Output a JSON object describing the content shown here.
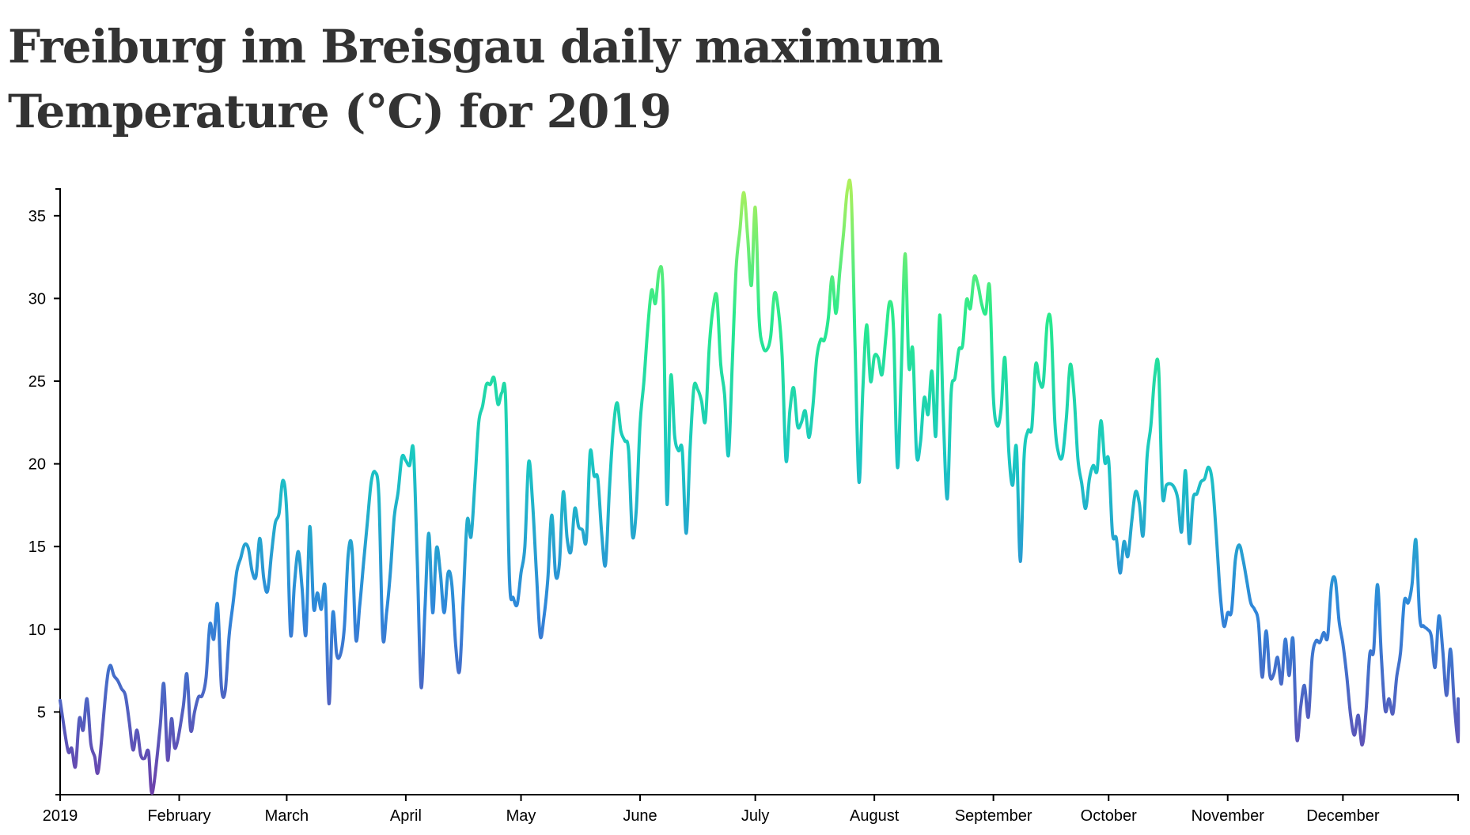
{
  "chart_data": {
    "type": "line",
    "title": "Freiburg im Breisgau daily maximum Temperature (°C) for 2019",
    "xlabel": "",
    "ylabel": "",
    "grid": false,
    "legend": "none",
    "year": 2019,
    "ylim": [
      0,
      37
    ],
    "y_ticks": [
      5,
      10,
      15,
      20,
      25,
      30,
      35
    ],
    "x_tick_labels": [
      "2019",
      "February",
      "March",
      "April",
      "May",
      "June",
      "July",
      "August",
      "September",
      "October",
      "November",
      "December"
    ],
    "x_tick_dates": [
      "2019-01-01",
      "2019-02-01",
      "2019-03-01",
      "2019-04-01",
      "2019-05-01",
      "2019-06-01",
      "2019-07-01",
      "2019-08-01",
      "2019-09-01",
      "2019-10-01",
      "2019-11-01",
      "2019-12-01",
      "2019-12-31"
    ],
    "color_scale": {
      "low": "#6e40aa",
      "mid_low": "#2f86da",
      "mid": "#1ac7c2",
      "mid_high": "#28ea8d",
      "high": "#aff05b"
    },
    "line_color_ref": {
      "low_temp": 0,
      "high_temp": 37
    },
    "points": [
      [
        "2019-01-01",
        5.7
      ],
      [
        "2019-01-03",
        2.7
      ],
      [
        "2019-01-04",
        2.8
      ],
      [
        "2019-01-05",
        1.7
      ],
      [
        "2019-01-06",
        4.6
      ],
      [
        "2019-01-07",
        3.9
      ],
      [
        "2019-01-08",
        5.8
      ],
      [
        "2019-01-09",
        3.1
      ],
      [
        "2019-01-10",
        2.3
      ],
      [
        "2019-01-11",
        1.5
      ],
      [
        "2019-01-13",
        6.5
      ],
      [
        "2019-01-14",
        7.8
      ],
      [
        "2019-01-15",
        7.2
      ],
      [
        "2019-01-16",
        6.9
      ],
      [
        "2019-01-17",
        6.4
      ],
      [
        "2019-01-18",
        6.0
      ],
      [
        "2019-01-19",
        4.4
      ],
      [
        "2019-01-20",
        2.7
      ],
      [
        "2019-01-21",
        3.9
      ],
      [
        "2019-01-22",
        2.4
      ],
      [
        "2019-01-23",
        2.2
      ],
      [
        "2019-01-24",
        2.6
      ],
      [
        "2019-01-25",
        0.1
      ],
      [
        "2019-01-27",
        4.0
      ],
      [
        "2019-01-28",
        6.7
      ],
      [
        "2019-01-29",
        2.1
      ],
      [
        "2019-01-30",
        4.6
      ],
      [
        "2019-01-31",
        2.8
      ],
      [
        "2019-02-02",
        5.2
      ],
      [
        "2019-02-03",
        7.3
      ],
      [
        "2019-02-04",
        3.9
      ],
      [
        "2019-02-05",
        5.0
      ],
      [
        "2019-02-06",
        5.9
      ],
      [
        "2019-02-07",
        6.0
      ],
      [
        "2019-02-08",
        7.1
      ],
      [
        "2019-02-09",
        10.3
      ],
      [
        "2019-02-10",
        9.4
      ],
      [
        "2019-02-11",
        11.5
      ],
      [
        "2019-02-12",
        6.5
      ],
      [
        "2019-02-13",
        6.3
      ],
      [
        "2019-02-14",
        9.6
      ],
      [
        "2019-02-15",
        11.5
      ],
      [
        "2019-02-16",
        13.5
      ],
      [
        "2019-02-17",
        14.3
      ],
      [
        "2019-02-18",
        15.1
      ],
      [
        "2019-02-19",
        14.9
      ],
      [
        "2019-02-20",
        13.5
      ],
      [
        "2019-02-21",
        13.2
      ],
      [
        "2019-02-22",
        15.5
      ],
      [
        "2019-02-23",
        13.1
      ],
      [
        "2019-02-24",
        12.3
      ],
      [
        "2019-02-25",
        14.5
      ],
      [
        "2019-02-26",
        16.4
      ],
      [
        "2019-02-27",
        17.0
      ],
      [
        "2019-02-28",
        19.0
      ],
      [
        "2019-03-01",
        17.1
      ],
      [
        "2019-03-02",
        9.7
      ],
      [
        "2019-03-03",
        12.7
      ],
      [
        "2019-03-04",
        14.7
      ],
      [
        "2019-03-05",
        12.5
      ],
      [
        "2019-03-06",
        9.7
      ],
      [
        "2019-03-07",
        16.2
      ],
      [
        "2019-03-08",
        11.3
      ],
      [
        "2019-03-09",
        12.2
      ],
      [
        "2019-03-10",
        11.2
      ],
      [
        "2019-03-11",
        12.5
      ],
      [
        "2019-03-12",
        5.5
      ],
      [
        "2019-03-13",
        11.0
      ],
      [
        "2019-03-14",
        8.5
      ],
      [
        "2019-03-15",
        8.5
      ],
      [
        "2019-03-16",
        10.1
      ],
      [
        "2019-03-17",
        14.5
      ],
      [
        "2019-03-18",
        14.9
      ],
      [
        "2019-03-19",
        9.4
      ],
      [
        "2019-03-20",
        11.4
      ],
      [
        "2019-03-21",
        14.0
      ],
      [
        "2019-03-22",
        16.5
      ],
      [
        "2019-03-23",
        18.9
      ],
      [
        "2019-03-24",
        19.5
      ],
      [
        "2019-03-25",
        18.0
      ],
      [
        "2019-03-26",
        9.6
      ],
      [
        "2019-03-27",
        11.0
      ],
      [
        "2019-03-28",
        13.5
      ],
      [
        "2019-03-29",
        16.8
      ],
      [
        "2019-03-30",
        18.3
      ],
      [
        "2019-03-31",
        20.4
      ],
      [
        "2019-04-01",
        20.2
      ],
      [
        "2019-04-02",
        19.9
      ],
      [
        "2019-04-03",
        20.8
      ],
      [
        "2019-04-04",
        14.0
      ],
      [
        "2019-04-05",
        6.5
      ],
      [
        "2019-04-06",
        11.3
      ],
      [
        "2019-04-07",
        15.8
      ],
      [
        "2019-04-08",
        11.0
      ],
      [
        "2019-04-09",
        14.9
      ],
      [
        "2019-04-10",
        13.4
      ],
      [
        "2019-04-11",
        11.0
      ],
      [
        "2019-04-12",
        13.4
      ],
      [
        "2019-04-13",
        12.7
      ],
      [
        "2019-04-14",
        9.0
      ],
      [
        "2019-04-15",
        7.5
      ],
      [
        "2019-04-16",
        12.0
      ],
      [
        "2019-04-17",
        16.6
      ],
      [
        "2019-04-18",
        15.6
      ],
      [
        "2019-04-19",
        18.9
      ],
      [
        "2019-04-20",
        22.5
      ],
      [
        "2019-04-21",
        23.5
      ],
      [
        "2019-04-22",
        24.8
      ],
      [
        "2019-04-23",
        24.8
      ],
      [
        "2019-04-24",
        25.2
      ],
      [
        "2019-04-25",
        23.6
      ],
      [
        "2019-04-26",
        24.3
      ],
      [
        "2019-04-27",
        23.9
      ],
      [
        "2019-04-28",
        13.0
      ],
      [
        "2019-04-29",
        11.9
      ],
      [
        "2019-04-30",
        11.5
      ],
      [
        "2019-05-01",
        13.4
      ],
      [
        "2019-05-02",
        15.0
      ],
      [
        "2019-05-03",
        20.1
      ],
      [
        "2019-05-04",
        17.7
      ],
      [
        "2019-05-05",
        13.5
      ],
      [
        "2019-05-06",
        9.6
      ],
      [
        "2019-05-07",
        10.8
      ],
      [
        "2019-05-08",
        13.1
      ],
      [
        "2019-05-09",
        16.9
      ],
      [
        "2019-05-10",
        13.3
      ],
      [
        "2019-05-11",
        14.0
      ],
      [
        "2019-05-12",
        18.3
      ],
      [
        "2019-05-13",
        15.5
      ],
      [
        "2019-05-14",
        14.7
      ],
      [
        "2019-05-15",
        17.3
      ],
      [
        "2019-05-16",
        16.2
      ],
      [
        "2019-05-17",
        16.0
      ],
      [
        "2019-05-18",
        15.4
      ],
      [
        "2019-05-19",
        20.7
      ],
      [
        "2019-05-20",
        19.3
      ],
      [
        "2019-05-21",
        19.1
      ],
      [
        "2019-05-22",
        15.8
      ],
      [
        "2019-05-23",
        13.9
      ],
      [
        "2019-05-24",
        18.4
      ],
      [
        "2019-05-25",
        22.0
      ],
      [
        "2019-05-26",
        23.7
      ],
      [
        "2019-05-27",
        22.0
      ],
      [
        "2019-05-28",
        21.4
      ],
      [
        "2019-05-29",
        20.8
      ],
      [
        "2019-05-30",
        15.7
      ],
      [
        "2019-05-31",
        17.2
      ],
      [
        "2019-06-01",
        22.4
      ],
      [
        "2019-06-02",
        25.0
      ],
      [
        "2019-06-03",
        28.2
      ],
      [
        "2019-06-04",
        30.5
      ],
      [
        "2019-06-05",
        29.7
      ],
      [
        "2019-06-06",
        31.7
      ],
      [
        "2019-06-07",
        30.3
      ],
      [
        "2019-06-08",
        17.6
      ],
      [
        "2019-06-09",
        25.3
      ],
      [
        "2019-06-10",
        21.7
      ],
      [
        "2019-06-11",
        20.8
      ],
      [
        "2019-06-12",
        20.8
      ],
      [
        "2019-06-13",
        15.8
      ],
      [
        "2019-06-14",
        20.8
      ],
      [
        "2019-06-15",
        24.6
      ],
      [
        "2019-06-16",
        24.5
      ],
      [
        "2019-06-17",
        23.8
      ],
      [
        "2019-06-18",
        22.6
      ],
      [
        "2019-06-19",
        27.0
      ],
      [
        "2019-06-20",
        29.4
      ],
      [
        "2019-06-21",
        30.1
      ],
      [
        "2019-06-22",
        26.0
      ],
      [
        "2019-06-23",
        24.2
      ],
      [
        "2019-06-24",
        20.5
      ],
      [
        "2019-06-25",
        26.0
      ],
      [
        "2019-06-26",
        31.8
      ],
      [
        "2019-06-27",
        34.1
      ],
      [
        "2019-06-28",
        36.4
      ],
      [
        "2019-06-29",
        33.8
      ],
      [
        "2019-06-30",
        30.8
      ],
      [
        "2019-07-01",
        35.5
      ],
      [
        "2019-07-02",
        28.8
      ],
      [
        "2019-07-03",
        27.1
      ],
      [
        "2019-07-04",
        26.9
      ],
      [
        "2019-07-05",
        27.7
      ],
      [
        "2019-07-06",
        30.3
      ],
      [
        "2019-07-07",
        29.3
      ],
      [
        "2019-07-08",
        26.5
      ],
      [
        "2019-07-09",
        20.2
      ],
      [
        "2019-07-10",
        23.2
      ],
      [
        "2019-07-11",
        24.6
      ],
      [
        "2019-07-12",
        22.3
      ],
      [
        "2019-07-13",
        22.5
      ],
      [
        "2019-07-14",
        23.2
      ],
      [
        "2019-07-15",
        21.6
      ],
      [
        "2019-07-16",
        23.5
      ],
      [
        "2019-07-17",
        26.4
      ],
      [
        "2019-07-18",
        27.5
      ],
      [
        "2019-07-19",
        27.5
      ],
      [
        "2019-07-20",
        28.8
      ],
      [
        "2019-07-21",
        31.3
      ],
      [
        "2019-07-22",
        29.1
      ],
      [
        "2019-07-23",
        31.6
      ],
      [
        "2019-07-24",
        34.0
      ],
      [
        "2019-07-25",
        36.6
      ],
      [
        "2019-07-26",
        36.2
      ],
      [
        "2019-07-27",
        26.9
      ],
      [
        "2019-07-28",
        18.9
      ],
      [
        "2019-07-29",
        24.5
      ],
      [
        "2019-07-30",
        28.4
      ],
      [
        "2019-07-31",
        25.0
      ],
      [
        "2019-08-01",
        26.5
      ],
      [
        "2019-08-02",
        26.4
      ],
      [
        "2019-08-03",
        25.4
      ],
      [
        "2019-08-04",
        27.7
      ],
      [
        "2019-08-05",
        29.8
      ],
      [
        "2019-08-06",
        28.1
      ],
      [
        "2019-08-07",
        19.8
      ],
      [
        "2019-08-08",
        25.5
      ],
      [
        "2019-08-09",
        32.7
      ],
      [
        "2019-08-10",
        25.9
      ],
      [
        "2019-08-11",
        26.9
      ],
      [
        "2019-08-12",
        20.6
      ],
      [
        "2019-08-13",
        21.3
      ],
      [
        "2019-08-14",
        24.0
      ],
      [
        "2019-08-15",
        23.0
      ],
      [
        "2019-08-16",
        25.6
      ],
      [
        "2019-08-17",
        21.7
      ],
      [
        "2019-08-18",
        29.0
      ],
      [
        "2019-08-19",
        22.6
      ],
      [
        "2019-08-20",
        17.9
      ],
      [
        "2019-08-21",
        24.3
      ],
      [
        "2019-08-22",
        25.2
      ],
      [
        "2019-08-23",
        26.9
      ],
      [
        "2019-08-24",
        27.2
      ],
      [
        "2019-08-25",
        29.9
      ],
      [
        "2019-08-26",
        29.4
      ],
      [
        "2019-08-27",
        31.3
      ],
      [
        "2019-08-28",
        30.8
      ],
      [
        "2019-08-29",
        29.6
      ],
      [
        "2019-08-30",
        29.1
      ],
      [
        "2019-08-31",
        30.7
      ],
      [
        "2019-09-01",
        24.0
      ],
      [
        "2019-09-02",
        22.3
      ],
      [
        "2019-09-03",
        23.3
      ],
      [
        "2019-09-04",
        26.4
      ],
      [
        "2019-09-05",
        20.8
      ],
      [
        "2019-09-06",
        18.7
      ],
      [
        "2019-09-07",
        21.0
      ],
      [
        "2019-09-08",
        14.1
      ],
      [
        "2019-09-09",
        20.5
      ],
      [
        "2019-09-10",
        22.0
      ],
      [
        "2019-09-11",
        22.2
      ],
      [
        "2019-09-12",
        26.0
      ],
      [
        "2019-09-13",
        25.0
      ],
      [
        "2019-09-14",
        24.9
      ],
      [
        "2019-09-15",
        28.5
      ],
      [
        "2019-09-16",
        28.4
      ],
      [
        "2019-09-17",
        22.5
      ],
      [
        "2019-09-18",
        20.6
      ],
      [
        "2019-09-19",
        20.5
      ],
      [
        "2019-09-20",
        22.8
      ],
      [
        "2019-09-21",
        26.0
      ],
      [
        "2019-09-22",
        24.1
      ],
      [
        "2019-09-23",
        20.3
      ],
      [
        "2019-09-24",
        18.8
      ],
      [
        "2019-09-25",
        17.3
      ],
      [
        "2019-09-26",
        19.1
      ],
      [
        "2019-09-27",
        19.9
      ],
      [
        "2019-09-28",
        19.6
      ],
      [
        "2019-09-29",
        22.6
      ],
      [
        "2019-09-30",
        20.1
      ],
      [
        "2019-10-01",
        20.2
      ],
      [
        "2019-10-02",
        15.8
      ],
      [
        "2019-10-03",
        15.5
      ],
      [
        "2019-10-04",
        13.4
      ],
      [
        "2019-10-05",
        15.3
      ],
      [
        "2019-10-06",
        14.4
      ],
      [
        "2019-10-07",
        16.5
      ],
      [
        "2019-10-08",
        18.3
      ],
      [
        "2019-10-09",
        17.6
      ],
      [
        "2019-10-10",
        15.7
      ],
      [
        "2019-10-11",
        20.4
      ],
      [
        "2019-10-12",
        22.3
      ],
      [
        "2019-10-13",
        25.3
      ],
      [
        "2019-10-14",
        25.8
      ],
      [
        "2019-10-15",
        18.2
      ],
      [
        "2019-10-16",
        18.7
      ],
      [
        "2019-10-17",
        18.8
      ],
      [
        "2019-10-18",
        18.6
      ],
      [
        "2019-10-19",
        17.9
      ],
      [
        "2019-10-20",
        15.9
      ],
      [
        "2019-10-21",
        19.6
      ],
      [
        "2019-10-22",
        15.2
      ],
      [
        "2019-10-23",
        17.9
      ],
      [
        "2019-10-24",
        18.2
      ],
      [
        "2019-10-25",
        18.9
      ],
      [
        "2019-10-26",
        19.1
      ],
      [
        "2019-10-27",
        19.8
      ],
      [
        "2019-10-28",
        18.9
      ],
      [
        "2019-10-29",
        15.8
      ],
      [
        "2019-10-30",
        12.3
      ],
      [
        "2019-10-31",
        10.2
      ],
      [
        "2019-11-01",
        11.0
      ],
      [
        "2019-11-02",
        11.1
      ],
      [
        "2019-11-03",
        14.2
      ],
      [
        "2019-11-04",
        15.1
      ],
      [
        "2019-11-05",
        14.2
      ],
      [
        "2019-11-06",
        12.9
      ],
      [
        "2019-11-07",
        11.6
      ],
      [
        "2019-11-08",
        11.2
      ],
      [
        "2019-11-09",
        10.4
      ],
      [
        "2019-11-10",
        7.1
      ],
      [
        "2019-11-11",
        9.9
      ],
      [
        "2019-11-12",
        7.2
      ],
      [
        "2019-11-13",
        7.3
      ],
      [
        "2019-11-14",
        8.3
      ],
      [
        "2019-11-15",
        6.7
      ],
      [
        "2019-11-16",
        9.4
      ],
      [
        "2019-11-17",
        7.2
      ],
      [
        "2019-11-18",
        9.4
      ],
      [
        "2019-11-19",
        3.4
      ],
      [
        "2019-11-20",
        5.3
      ],
      [
        "2019-11-21",
        6.6
      ],
      [
        "2019-11-22",
        4.7
      ],
      [
        "2019-11-23",
        8.3
      ],
      [
        "2019-11-24",
        9.3
      ],
      [
        "2019-11-25",
        9.2
      ],
      [
        "2019-11-26",
        9.8
      ],
      [
        "2019-11-27",
        9.5
      ],
      [
        "2019-11-28",
        12.6
      ],
      [
        "2019-11-29",
        13.0
      ],
      [
        "2019-11-30",
        10.5
      ],
      [
        "2019-12-01",
        9.1
      ],
      [
        "2019-12-02",
        7.2
      ],
      [
        "2019-12-03",
        4.8
      ],
      [
        "2019-12-04",
        3.6
      ],
      [
        "2019-12-05",
        4.8
      ],
      [
        "2019-12-06",
        3.0
      ],
      [
        "2019-12-07",
        5.0
      ],
      [
        "2019-12-08",
        8.5
      ],
      [
        "2019-12-09",
        8.7
      ],
      [
        "2019-12-10",
        12.7
      ],
      [
        "2019-12-11",
        8.4
      ],
      [
        "2019-12-12",
        5.1
      ],
      [
        "2019-12-13",
        5.8
      ],
      [
        "2019-12-14",
        4.9
      ],
      [
        "2019-12-15",
        7.1
      ],
      [
        "2019-12-16",
        8.6
      ],
      [
        "2019-12-17",
        11.7
      ],
      [
        "2019-12-18",
        11.6
      ],
      [
        "2019-12-19",
        12.7
      ],
      [
        "2019-12-20",
        15.4
      ],
      [
        "2019-12-21",
        10.7
      ],
      [
        "2019-12-22",
        10.2
      ],
      [
        "2019-12-23",
        10.0
      ],
      [
        "2019-12-24",
        9.6
      ],
      [
        "2019-12-25",
        7.7
      ],
      [
        "2019-12-26",
        10.8
      ],
      [
        "2019-12-27",
        8.7
      ],
      [
        "2019-12-28",
        6.0
      ],
      [
        "2019-12-29",
        8.8
      ],
      [
        "2019-12-30",
        5.5
      ],
      [
        "2019-12-31",
        3.2
      ],
      [
        "2019-12-31",
        5.8
      ]
    ]
  }
}
